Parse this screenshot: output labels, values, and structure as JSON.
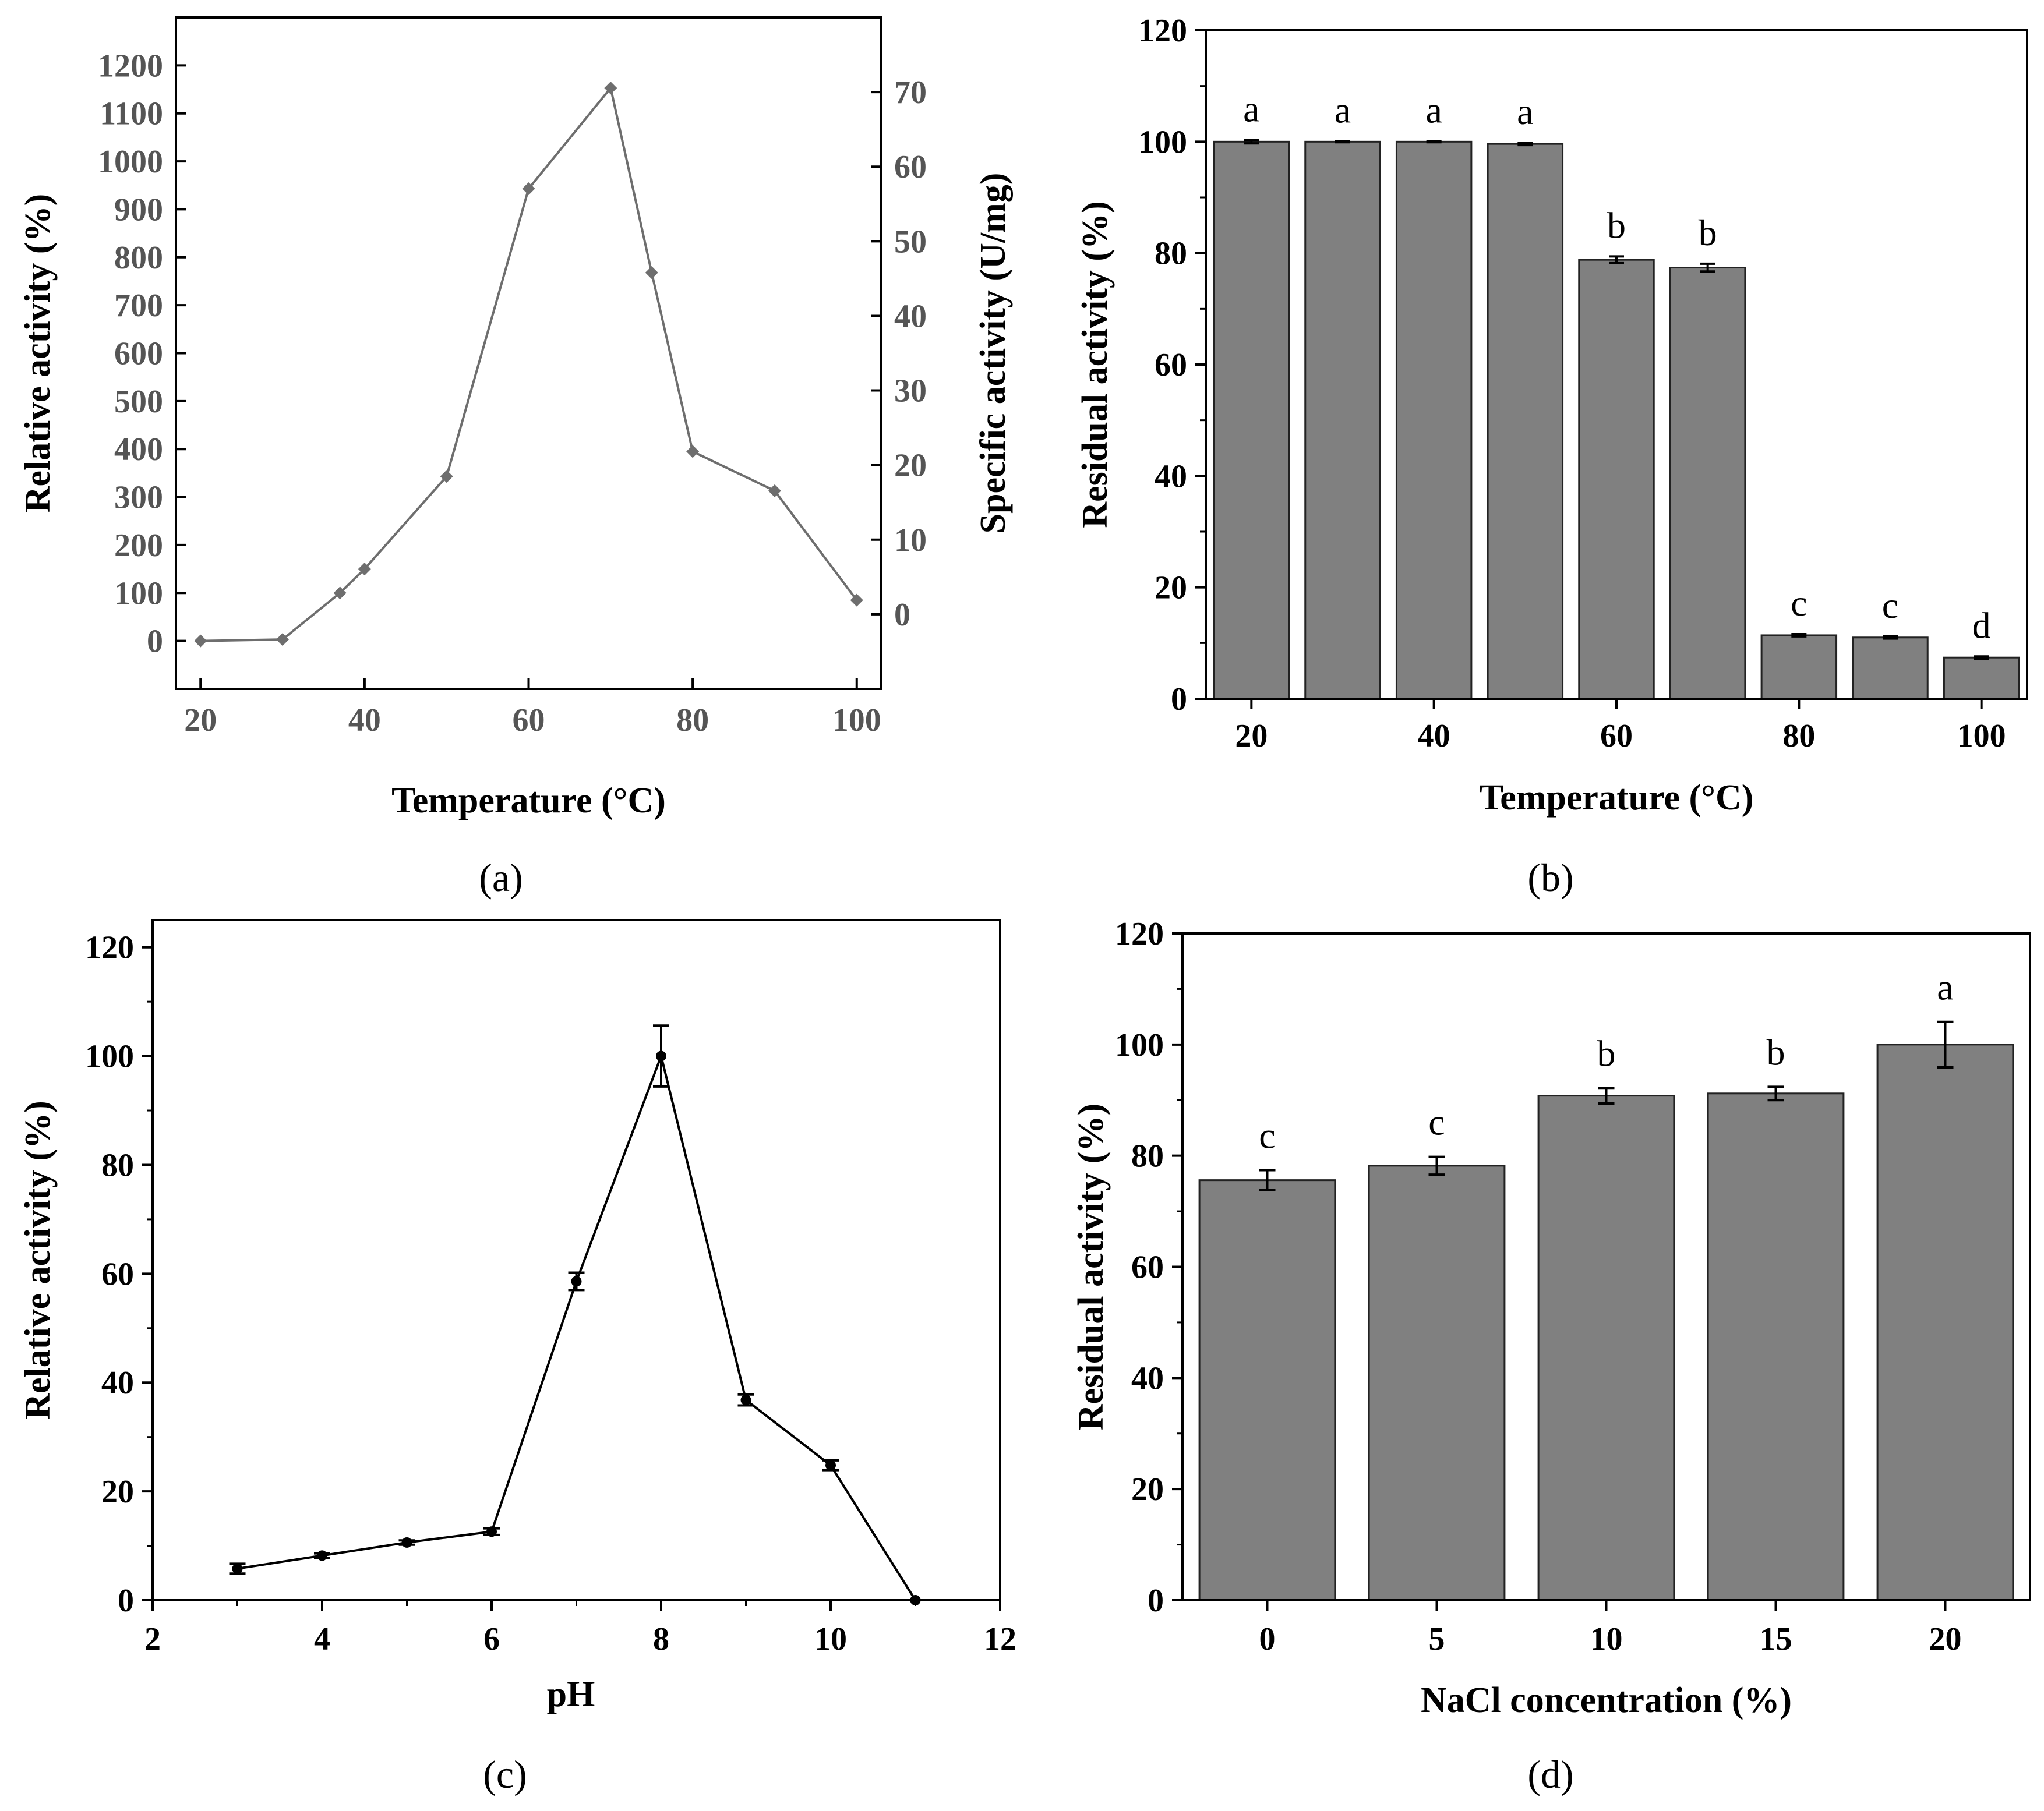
{
  "colors": {
    "bar": "#808080",
    "line_a": "#6e6e6e",
    "line_c": "#000000",
    "axis": "#000000"
  },
  "chart_data": [
    {
      "id": "a",
      "panel_label": "(a)",
      "type": "line",
      "title": "",
      "xlabel": "Temperature (°C)",
      "ylabel": "Relative activity (%)",
      "y2label": "Specific activity (U/mg)",
      "xlim": [
        17,
        103
      ],
      "ylim": [
        -100,
        1300
      ],
      "y2lim": [
        -10,
        80
      ],
      "x_ticks": [
        20,
        40,
        60,
        80,
        100
      ],
      "y_ticks": [
        0,
        100,
        200,
        300,
        400,
        500,
        600,
        700,
        800,
        900,
        1000,
        1100,
        1200
      ],
      "y2_ticks": [
        0,
        10,
        20,
        30,
        40,
        50,
        60,
        70
      ],
      "x": [
        20,
        30,
        37,
        40,
        50,
        60,
        70,
        75,
        80,
        90,
        100
      ],
      "y": [
        0,
        3,
        100,
        150,
        343,
        943,
        1153,
        768,
        395,
        313,
        85
      ]
    },
    {
      "id": "b",
      "panel_label": "(b)",
      "type": "bar",
      "title": "",
      "xlabel": "Temperature (°C)",
      "ylabel": "Residual activity (%)",
      "ylim": [
        0,
        120
      ],
      "y_ticks": [
        0,
        20,
        40,
        60,
        80,
        100,
        120
      ],
      "x_ticks": [
        20,
        40,
        60,
        80,
        100
      ],
      "x": [
        20,
        30,
        40,
        50,
        60,
        70,
        80,
        90,
        100
      ],
      "values": [
        100,
        100,
        100,
        99.6,
        78.8,
        77.4,
        11.4,
        11.0,
        7.4
      ],
      "errors": [
        0.3,
        0.1,
        0.1,
        0.2,
        0.6,
        0.7,
        0.2,
        0.2,
        0.2
      ],
      "letters": [
        "a",
        "a",
        "a",
        "a",
        "b",
        "b",
        "c",
        "c",
        "d"
      ]
    },
    {
      "id": "c",
      "panel_label": "(c)",
      "type": "line",
      "title": "",
      "xlabel": "pH",
      "ylabel": "Relative activity (%)",
      "xlim": [
        2,
        12
      ],
      "ylim": [
        0,
        125
      ],
      "x_ticks": [
        2,
        4,
        6,
        8,
        10,
        12
      ],
      "y_ticks": [
        0,
        20,
        40,
        60,
        80,
        100,
        120
      ],
      "x": [
        3,
        4,
        5,
        6,
        7,
        8,
        9,
        10,
        11
      ],
      "y": [
        5.8,
        8.2,
        10.6,
        12.6,
        58.6,
        100,
        36.8,
        24.8,
        0
      ],
      "errors": [
        0.9,
        0.4,
        0.4,
        0.6,
        1.6,
        5.6,
        1.0,
        0.9,
        0
      ]
    },
    {
      "id": "d",
      "panel_label": "(d)",
      "type": "bar",
      "title": "",
      "xlabel": "NaCl concentration (%)",
      "ylabel": "Residual activity (%)",
      "ylim": [
        0,
        120
      ],
      "y_ticks": [
        0,
        20,
        40,
        60,
        80,
        100,
        120
      ],
      "categories": [
        "0",
        "5",
        "10",
        "15",
        "20"
      ],
      "values": [
        75.6,
        78.2,
        90.8,
        91.2,
        100
      ],
      "errors": [
        1.8,
        1.6,
        1.4,
        1.2,
        4.1
      ],
      "letters": [
        "c",
        "c",
        "b",
        "b",
        "a"
      ]
    }
  ]
}
